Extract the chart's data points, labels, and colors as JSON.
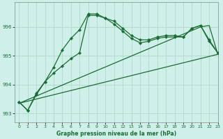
{
  "background_color": "#cff0e8",
  "grid_color": "#b0d8cc",
  "line_color": "#1a6b35",
  "title": "Graphe pression niveau de la mer (hPa)",
  "xlim": [
    -0.5,
    23
  ],
  "ylim": [
    992.7,
    996.85
  ],
  "yticks": [
    993,
    994,
    995,
    996
  ],
  "xticks": [
    0,
    1,
    2,
    3,
    4,
    5,
    6,
    7,
    8,
    9,
    10,
    11,
    12,
    13,
    14,
    15,
    16,
    17,
    18,
    19,
    20,
    21,
    22,
    23
  ],
  "series1_x": [
    0,
    1,
    2,
    3,
    4,
    5,
    6,
    7,
    8,
    9,
    10,
    11,
    12,
    13,
    14,
    15,
    16,
    17,
    18,
    19,
    20,
    21,
    22,
    23
  ],
  "series1_y": [
    993.4,
    993.1,
    993.7,
    994.1,
    994.6,
    995.2,
    995.6,
    995.9,
    996.45,
    996.45,
    996.3,
    996.2,
    995.95,
    995.7,
    995.55,
    995.55,
    995.65,
    995.7,
    995.7,
    995.65,
    995.95,
    996.05,
    995.55,
    995.1
  ],
  "series2_x": [
    0,
    1,
    2,
    3,
    4,
    5,
    6,
    7,
    8,
    9,
    10,
    11,
    12,
    13,
    14,
    15,
    16,
    17,
    18,
    19,
    20,
    21,
    22,
    23
  ],
  "series2_y": [
    993.4,
    993.1,
    993.65,
    994.1,
    994.4,
    994.65,
    994.9,
    995.1,
    996.4,
    996.4,
    996.3,
    996.1,
    995.85,
    995.6,
    995.45,
    995.5,
    995.6,
    995.65,
    995.65,
    995.65,
    995.95,
    996.05,
    995.5,
    995.1
  ],
  "series3_x": [
    0,
    23
  ],
  "series3_y": [
    993.35,
    995.05
  ],
  "series4_x": [
    0,
    21,
    22,
    23
  ],
  "series4_y": [
    993.35,
    996.0,
    996.05,
    995.05
  ],
  "figsize": [
    3.2,
    2.0
  ],
  "dpi": 100
}
